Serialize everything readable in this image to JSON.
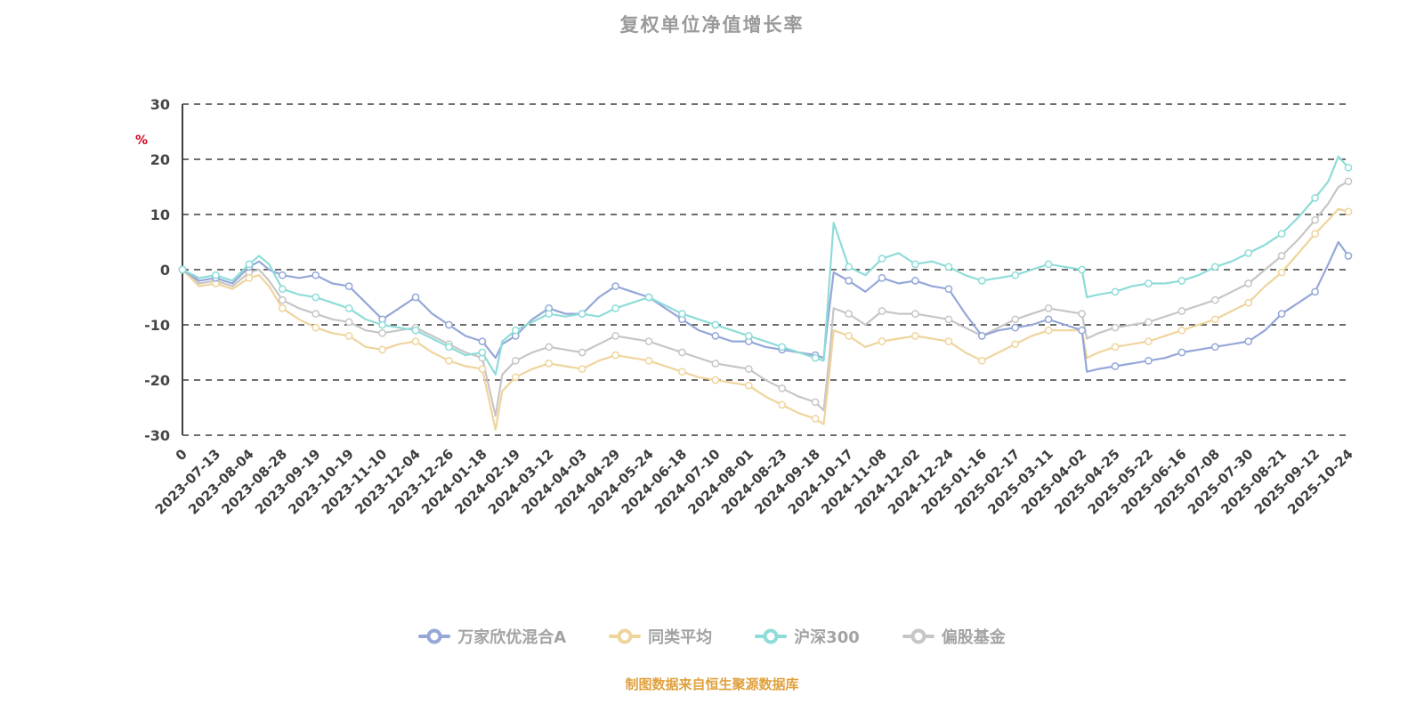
{
  "title": "复权单位净值增长率",
  "footer": "制图数据来自恒生聚源数据库",
  "chart_data": {
    "type": "line",
    "title": "复权单位净值增长率",
    "ylabel": "%",
    "ylim": [
      -30,
      30
    ],
    "y_ticks": [
      30,
      20,
      10,
      0,
      -10,
      -20,
      -30
    ],
    "grid": "dashed-horizontal",
    "legend_position": "bottom",
    "x_tick_labels": [
      "0",
      "2023-07-13",
      "2023-08-04",
      "2023-08-28",
      "2023-09-19",
      "2023-10-19",
      "2023-11-10",
      "2023-12-04",
      "2023-12-26",
      "2024-01-18",
      "2024-02-19",
      "2024-03-12",
      "2024-04-03",
      "2024-04-29",
      "2024-05-24",
      "2024-06-18",
      "2024-07-10",
      "2024-08-01",
      "2024-08-23",
      "2024-09-18",
      "2024-10-17",
      "2024-11-08",
      "2024-12-02",
      "2024-12-24",
      "2025-01-16",
      "2025-02-17",
      "2025-03-11",
      "2025-04-02",
      "2025-04-25",
      "2025-05-22",
      "2025-06-16",
      "2025-07-08",
      "2025-07-30",
      "2025-08-21",
      "2025-09-12",
      "2025-10-24"
    ],
    "x": [
      0,
      0.5,
      1,
      1.5,
      2,
      2.3,
      2.6,
      3,
      3.5,
      4,
      4.5,
      5,
      5.5,
      6,
      6.5,
      7,
      7.5,
      8,
      8.5,
      9,
      9.4,
      9.6,
      10,
      10.5,
      11,
      11.5,
      12,
      12.5,
      13,
      13.5,
      14,
      14.5,
      15,
      15.5,
      16,
      16.5,
      17,
      17.5,
      18,
      18.5,
      19,
      19.25,
      19.4,
      19.55,
      20,
      20.5,
      21,
      21.5,
      22,
      22.5,
      23,
      23.5,
      24,
      24.5,
      25,
      25.5,
      26,
      26.5,
      27,
      27.15,
      27.5,
      28,
      28.5,
      29,
      29.5,
      30,
      30.5,
      31,
      31.5,
      32,
      32.5,
      33,
      33.5,
      34,
      34.4,
      34.7,
      35
    ],
    "series": [
      {
        "name": "万家欣优混合A",
        "color": "#94a7d8",
        "values": [
          0,
          -2,
          -1.5,
          -2.5,
          0.5,
          1.5,
          0,
          -1,
          -1.5,
          -1,
          -2.5,
          -3,
          -6,
          -9,
          -7,
          -5,
          -8,
          -10,
          -12,
          -13,
          -16,
          -13.5,
          -12,
          -9,
          -7,
          -8,
          -8,
          -5,
          -3,
          -4,
          -5,
          -7,
          -9,
          -11,
          -12,
          -13,
          -13,
          -14,
          -14.5,
          -15,
          -15.5,
          -16,
          -8,
          -0.5,
          -2,
          -4,
          -1.5,
          -2.5,
          -2,
          -3,
          -3.5,
          -8,
          -12,
          -11,
          -10.5,
          -10,
          -9,
          -10,
          -11,
          -18.5,
          -18,
          -17.5,
          -17,
          -16.5,
          -16,
          -15,
          -14.5,
          -14,
          -13.5,
          -13,
          -11,
          -8,
          -6,
          -4,
          1,
          5,
          2.5
        ]
      },
      {
        "name": "同类平均",
        "color": "#efd49c",
        "values": [
          0,
          -3,
          -2.5,
          -3.5,
          -1.5,
          -1,
          -3,
          -7,
          -9,
          -10.5,
          -11.5,
          -12,
          -14,
          -14.5,
          -13.5,
          -13,
          -15,
          -16.5,
          -17.5,
          -18,
          -29,
          -22,
          -19.5,
          -18,
          -17,
          -17.5,
          -18,
          -16.5,
          -15.5,
          -16,
          -16.5,
          -17.5,
          -18.5,
          -19.5,
          -20,
          -20.5,
          -21,
          -23,
          -24.5,
          -26,
          -27,
          -28,
          -20,
          -11,
          -12,
          -14,
          -13,
          -12.5,
          -12,
          -12.5,
          -13,
          -15,
          -16.5,
          -15,
          -13.5,
          -12,
          -11,
          -11,
          -11,
          -16,
          -15,
          -14,
          -13.5,
          -13,
          -12,
          -11,
          -10,
          -9,
          -7.5,
          -6,
          -3,
          -0.5,
          3,
          6.5,
          9,
          11,
          10.5
        ]
      },
      {
        "name": "沪深300",
        "color": "#8edcd8",
        "values": [
          0,
          -1.5,
          -1,
          -2,
          1,
          2.5,
          1,
          -3.5,
          -4.5,
          -5,
          -6,
          -7,
          -9,
          -10,
          -10.5,
          -11,
          -12.5,
          -14,
          -15.5,
          -15,
          -19,
          -13,
          -11,
          -9.5,
          -8,
          -8.5,
          -8,
          -8.5,
          -7,
          -6,
          -5,
          -6.5,
          -8,
          -9,
          -10,
          -11,
          -12,
          -13,
          -14,
          -15,
          -16,
          -16.5,
          -4,
          8.5,
          0.5,
          -1,
          2,
          3,
          1,
          1.5,
          0.5,
          -1,
          -2,
          -1.5,
          -1,
          0,
          1,
          0.5,
          0,
          -5,
          -4.5,
          -4,
          -3,
          -2.5,
          -2.5,
          -2,
          -1,
          0.5,
          1.5,
          3,
          4.5,
          6.5,
          9.5,
          13,
          16,
          20.5,
          18.5
        ]
      },
      {
        "name": "偏股基金",
        "color": "#c6c6c6",
        "values": [
          0,
          -2.5,
          -2,
          -3,
          -0.5,
          0,
          -2,
          -5.5,
          -7,
          -8,
          -9,
          -9.5,
          -11,
          -11.5,
          -11,
          -10.5,
          -12,
          -13.5,
          -15,
          -16,
          -26.5,
          -19,
          -16.5,
          -15,
          -14,
          -14.5,
          -15,
          -13.5,
          -12,
          -12.5,
          -13,
          -14,
          -15,
          -16,
          -17,
          -17.5,
          -18,
          -20,
          -21.5,
          -23,
          -24,
          -25.5,
          -17,
          -7,
          -8,
          -10,
          -7.5,
          -8,
          -8,
          -8.5,
          -9,
          -10.5,
          -12,
          -10.5,
          -9,
          -8,
          -7,
          -7.5,
          -8,
          -12.5,
          -11.5,
          -10.5,
          -10,
          -9.5,
          -8.5,
          -7.5,
          -6.5,
          -5.5,
          -4,
          -2.5,
          0,
          2.5,
          5.5,
          9,
          12,
          15,
          16
        ]
      }
    ]
  }
}
